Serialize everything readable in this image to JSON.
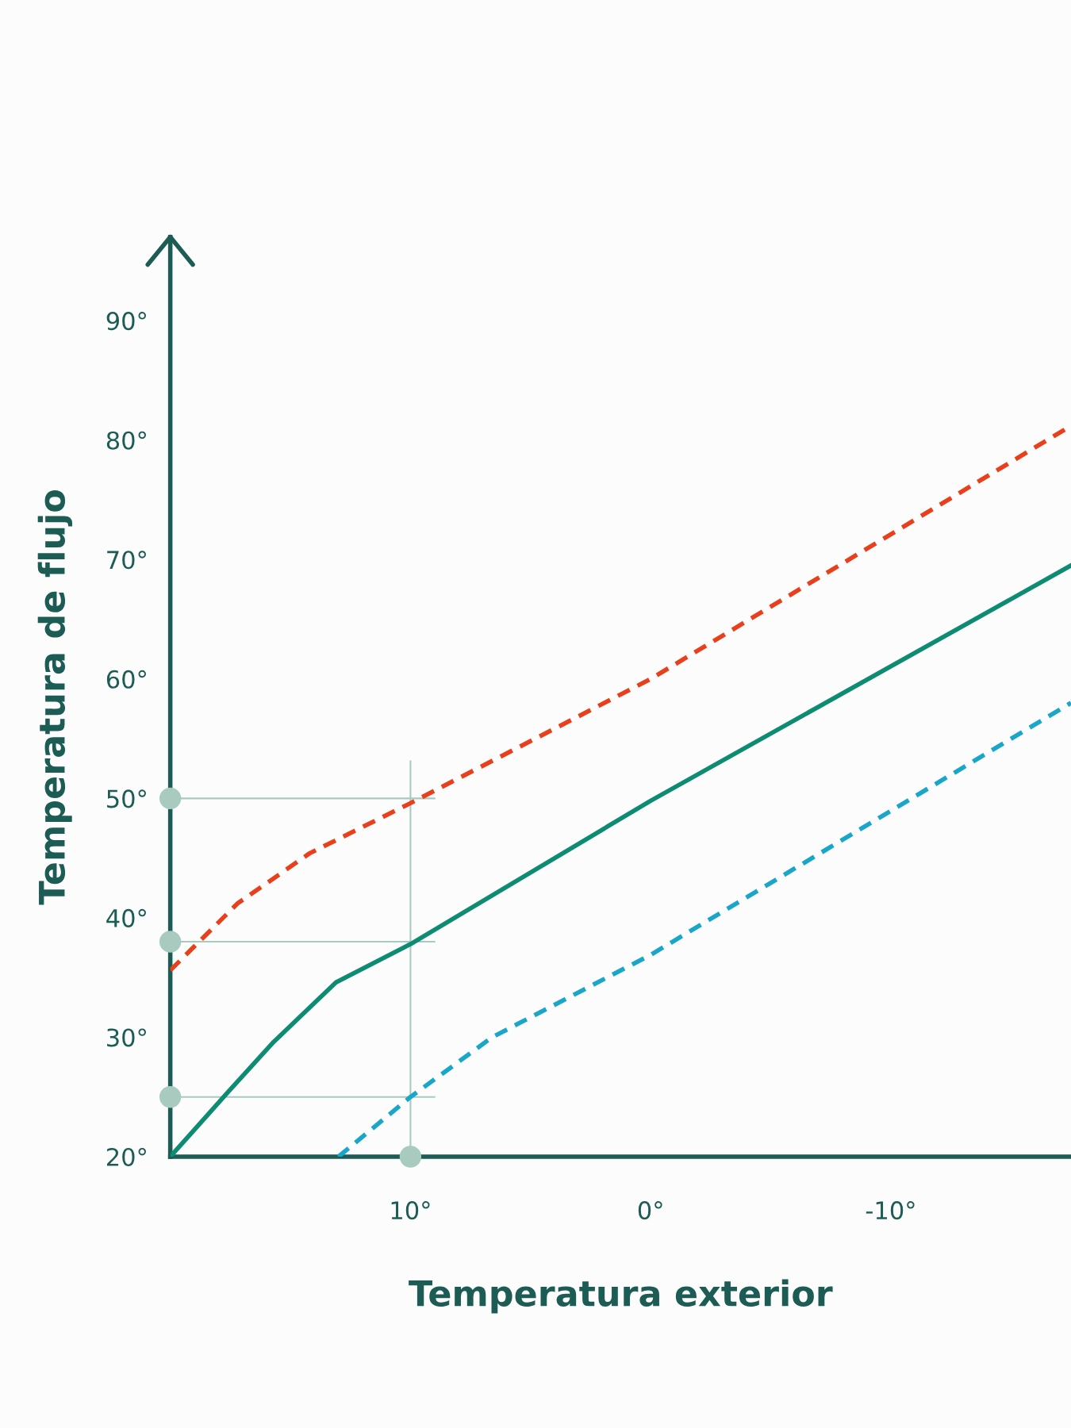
{
  "chart_data": {
    "type": "line",
    "xlabel": "Temperatura exterior",
    "ylabel": "Temperatura de flujo",
    "xlim": [
      20,
      -17.5
    ],
    "ylim": [
      20,
      97
    ],
    "xticks": [
      {
        "value": 10,
        "label": "10°"
      },
      {
        "value": 0,
        "label": "0°"
      },
      {
        "value": -10,
        "label": "-10°"
      }
    ],
    "yticks": [
      {
        "value": 20,
        "label": "20°"
      },
      {
        "value": 30,
        "label": "30°"
      },
      {
        "value": 40,
        "label": "40°"
      },
      {
        "value": 50,
        "label": "50°"
      },
      {
        "value": 60,
        "label": "60°"
      },
      {
        "value": 70,
        "label": "70°"
      },
      {
        "value": 80,
        "label": "80°"
      },
      {
        "value": 90,
        "label": "90°"
      }
    ],
    "grid": false,
    "legend": false,
    "series": [
      {
        "color": "#e8401c",
        "line_style": "dashed",
        "x": [
          20,
          17.2,
          14.2,
          10,
          0,
          -17.5
        ],
        "values": [
          35.6,
          41.2,
          45.4,
          49.6,
          60,
          81.2
        ]
      },
      {
        "color": "#0e8c73",
        "line_style": "solid",
        "x": [
          20,
          17.6,
          15.7,
          13.1,
          10,
          0,
          -17.5
        ],
        "values": [
          20,
          25.4,
          29.6,
          34.6,
          37.8,
          49.8,
          69.5
        ]
      },
      {
        "color": "#1aa6c8",
        "line_style": "dashed",
        "x": [
          13,
          10,
          6.6,
          0,
          -17.5
        ],
        "values": [
          20,
          25,
          30,
          36.9,
          58
        ]
      },
      {
        "type": "scatter",
        "color": "#a9cbbf",
        "x": [
          20,
          20,
          20,
          10
        ],
        "values": [
          50,
          38,
          25,
          20
        ]
      }
    ],
    "ref_lines": [
      {
        "axis": "y",
        "value": 50,
        "color": "#a9cbbf"
      },
      {
        "axis": "y",
        "value": 38,
        "color": "#a9cbbf"
      },
      {
        "axis": "y",
        "value": 25,
        "color": "#a9cbbf"
      },
      {
        "axis": "x",
        "value": 10,
        "color": "#a9cbbf"
      }
    ]
  }
}
